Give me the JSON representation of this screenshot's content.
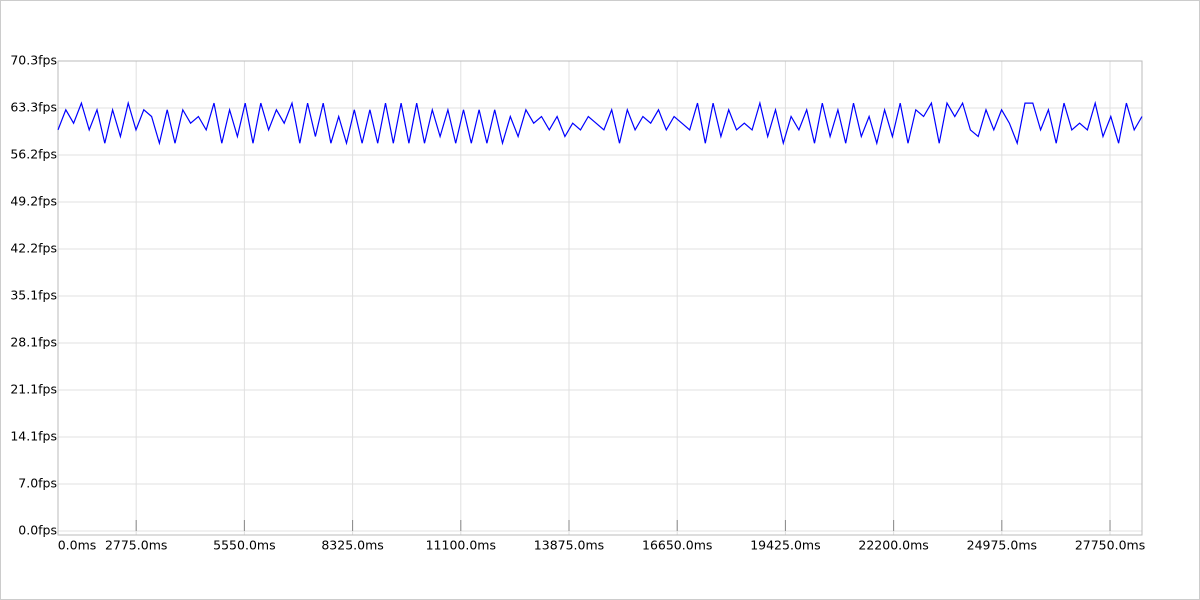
{
  "chart_data": {
    "type": "line",
    "x": [
      770,
      970,
      1170,
      1370,
      1570,
      1770,
      1970,
      2170,
      2370,
      2570,
      2770,
      2970,
      3170,
      3370,
      3570,
      3770,
      3970,
      4170,
      4370,
      4570,
      4770,
      4970,
      5170,
      5370,
      5570,
      5770,
      5970,
      6170,
      6370,
      6570,
      6770,
      6970,
      7170,
      7370,
      7570,
      7770,
      7970,
      8170,
      8370,
      8570,
      8770,
      8970,
      9170,
      9370,
      9570,
      9770,
      9970,
      10170,
      10370,
      10570,
      10770,
      10970,
      11170,
      11370,
      11570,
      11770,
      11970,
      12170,
      12370,
      12570,
      12770,
      12970,
      13170,
      13370,
      13570,
      13770,
      13970,
      14170,
      14370,
      14570,
      14770,
      14970,
      15170,
      15370,
      15570,
      15770,
      15970,
      16170,
      16370,
      16570,
      16770,
      16970,
      17170,
      17370,
      17570,
      17770,
      17970,
      18170,
      18370,
      18570,
      18770,
      18970,
      19170,
      19370,
      19570,
      19770,
      19970,
      20170,
      20370,
      20570,
      20770,
      20970,
      21170,
      21370,
      21570,
      21770,
      21970,
      22170,
      22370,
      22570,
      22770,
      22970,
      23170,
      23370,
      23570,
      23770,
      23970,
      24170,
      24370,
      24570,
      24770,
      24970,
      25170,
      25370,
      25570,
      25770,
      25970,
      26170,
      26370,
      26570,
      26770,
      26970,
      27170,
      27370,
      27570,
      27770,
      27970,
      28170,
      28370,
      28570
    ],
    "series": [
      {
        "color": "#0000ff",
        "values": [
          60,
          63,
          61,
          64,
          60,
          63,
          58,
          63,
          59,
          64,
          60,
          63,
          62,
          58,
          63,
          58,
          63,
          61,
          62,
          60,
          64,
          58,
          63,
          59,
          64,
          58,
          64,
          60,
          63,
          61,
          64,
          58,
          64,
          59,
          64,
          58,
          62,
          58,
          63,
          58,
          63,
          58,
          64,
          58,
          64,
          58,
          64,
          58,
          63,
          59,
          63,
          58,
          63,
          58,
          63,
          58,
          63,
          58,
          62,
          59,
          63,
          61,
          62,
          60,
          62,
          59,
          61,
          60,
          62,
          61,
          60,
          63,
          58,
          63,
          60,
          62,
          61,
          63,
          60,
          62,
          61,
          60,
          64,
          58,
          64,
          59,
          63,
          60,
          61,
          60,
          64,
          59,
          63,
          58,
          62,
          60,
          63,
          58,
          64,
          59,
          63,
          58,
          64,
          59,
          62,
          58,
          63,
          59,
          64,
          58,
          63,
          62,
          64,
          58,
          64,
          62,
          64,
          60,
          59,
          63,
          60,
          63,
          61,
          58,
          64,
          64,
          60,
          63,
          58,
          64,
          60,
          61,
          60,
          64,
          59,
          62,
          58,
          64,
          60,
          62
        ]
      }
    ],
    "xlim": [
      770,
      28570
    ],
    "ylim": [
      0,
      70.3
    ],
    "xticks": [
      {
        "value": 0,
        "label": "0.0ms"
      },
      {
        "value": 2775,
        "label": "2775.0ms"
      },
      {
        "value": 5550,
        "label": "5550.0ms"
      },
      {
        "value": 8325,
        "label": "8325.0ms"
      },
      {
        "value": 11100,
        "label": "11100.0ms"
      },
      {
        "value": 13875,
        "label": "13875.0ms"
      },
      {
        "value": 16650,
        "label": "16650.0ms"
      },
      {
        "value": 19425,
        "label": "19425.0ms"
      },
      {
        "value": 22200,
        "label": "22200.0ms"
      },
      {
        "value": 24975,
        "label": "24975.0ms"
      },
      {
        "value": 27750,
        "label": "27750.0ms"
      }
    ],
    "yticks": [
      {
        "value": 0,
        "label": "0.0fps"
      },
      {
        "value": 7.03,
        "label": "7.0fps"
      },
      {
        "value": 14.06,
        "label": "14.1fps"
      },
      {
        "value": 21.09,
        "label": "21.1fps"
      },
      {
        "value": 28.12,
        "label": "28.1fps"
      },
      {
        "value": 35.15,
        "label": "35.1fps"
      },
      {
        "value": 42.18,
        "label": "42.2fps"
      },
      {
        "value": 49.21,
        "label": "49.2fps"
      },
      {
        "value": 56.24,
        "label": "56.2fps"
      },
      {
        "value": 63.27,
        "label": "63.3fps"
      },
      {
        "value": 70.3,
        "label": "70.3fps"
      }
    ],
    "grid": true
  }
}
